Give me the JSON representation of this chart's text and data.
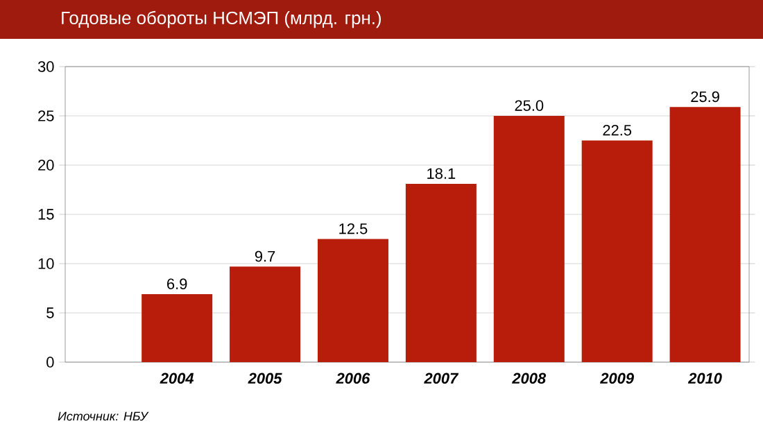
{
  "chart_data": {
    "type": "bar",
    "title": "Годовые обороты НСМЭП (млрд. грн.)",
    "categories": [
      "2004",
      "2005",
      "2006",
      "2007",
      "2008",
      "2009",
      "2010"
    ],
    "values": [
      6.9,
      9.7,
      12.5,
      18.1,
      25.0,
      22.5,
      25.9
    ],
    "value_labels": [
      "6.9",
      "9.7",
      "12.5",
      "18.1",
      "25.0",
      "22.5",
      "25.9"
    ],
    "color": "#b81c0a",
    "ylim": [
      0,
      30
    ],
    "yticks": [
      0,
      5,
      10,
      15,
      20,
      25,
      30
    ],
    "grid": "y",
    "annotations": [
      "Источник: НБУ"
    ]
  }
}
